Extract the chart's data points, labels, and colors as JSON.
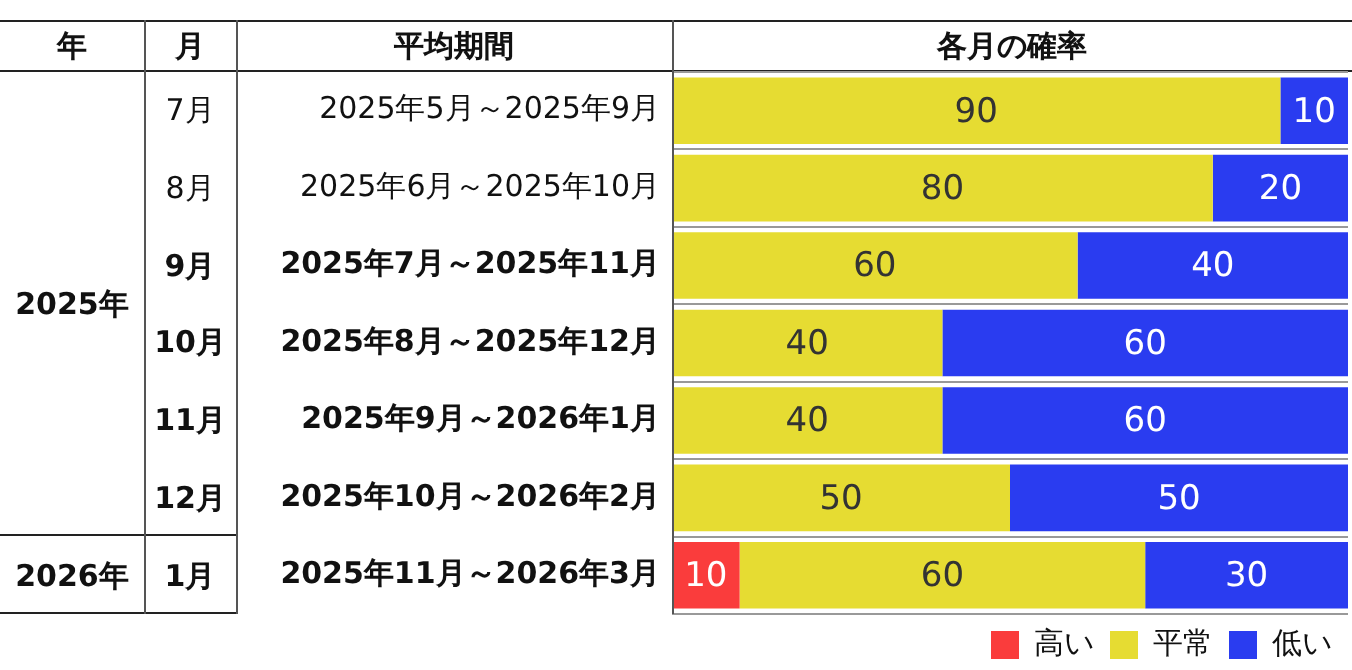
{
  "chart_data": {
    "type": "bar",
    "orientation": "horizontal",
    "stacked": true,
    "categories": [
      "2025年5月～2025年9月",
      "2025年6月～2025年10月",
      "2025年7月～2025年11月",
      "2025年8月～2025年12月",
      "2025年9月～2026年1月",
      "2025年10月～2026年2月",
      "2025年11月～2026年3月"
    ],
    "series": [
      {
        "name": "高い",
        "color": "#fa3c3c",
        "values": [
          null,
          null,
          null,
          null,
          null,
          null,
          10
        ]
      },
      {
        "name": "平常",
        "color": "#e6dc32",
        "values": [
          90,
          80,
          60,
          40,
          40,
          50,
          60
        ]
      },
      {
        "name": "低い",
        "color": "#2a3cf0",
        "values": [
          10,
          20,
          40,
          60,
          60,
          50,
          30
        ]
      }
    ],
    "xlim": [
      0,
      100
    ],
    "tick_labels": "y",
    "grid": "y",
    "legend": "bottom right",
    "data_labels": true,
    "annotations": [
      "年",
      "月",
      "平均期間",
      "各月の確率",
      "7月",
      "8月",
      "9月",
      "10月",
      "11月",
      "12月",
      "1月",
      "2025年",
      "2026年"
    ]
  }
}
